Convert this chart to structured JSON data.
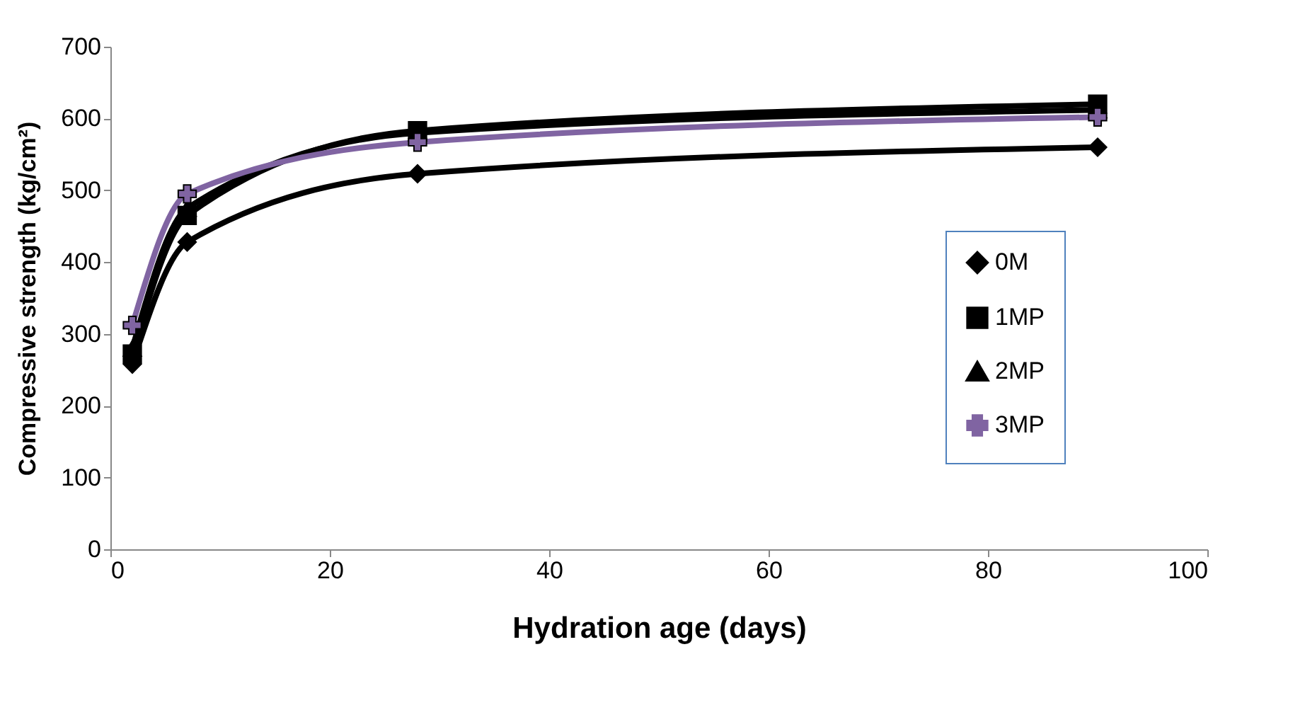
{
  "chart_data": {
    "type": "line",
    "xlabel": "Hydration age (days)",
    "ylabel": "Compressive strength (kg/cm²)",
    "x": [
      2,
      7,
      28,
      90
    ],
    "series": [
      {
        "name": "0M",
        "color": "#000000",
        "marker": "diamond",
        "values": [
          258,
          428,
          523,
          560
        ]
      },
      {
        "name": "1MP",
        "color": "#000000",
        "marker": "square",
        "values": [
          272,
          465,
          583,
          620
        ]
      },
      {
        "name": "2MP",
        "color": "#000000",
        "marker": "triangle",
        "values": [
          280,
          475,
          580,
          612
        ]
      },
      {
        "name": "3MP",
        "color": "#8064a2",
        "marker": "cross",
        "values": [
          312,
          495,
          567,
          602
        ]
      }
    ],
    "xlim": [
      0,
      100
    ],
    "xticks": [
      0,
      20,
      40,
      60,
      80,
      100
    ],
    "ylim": [
      0,
      700
    ],
    "yticks": [
      0,
      100,
      200,
      300,
      400,
      500,
      600,
      700
    ],
    "grid": false,
    "legend": "right",
    "line_style": "solid"
  }
}
